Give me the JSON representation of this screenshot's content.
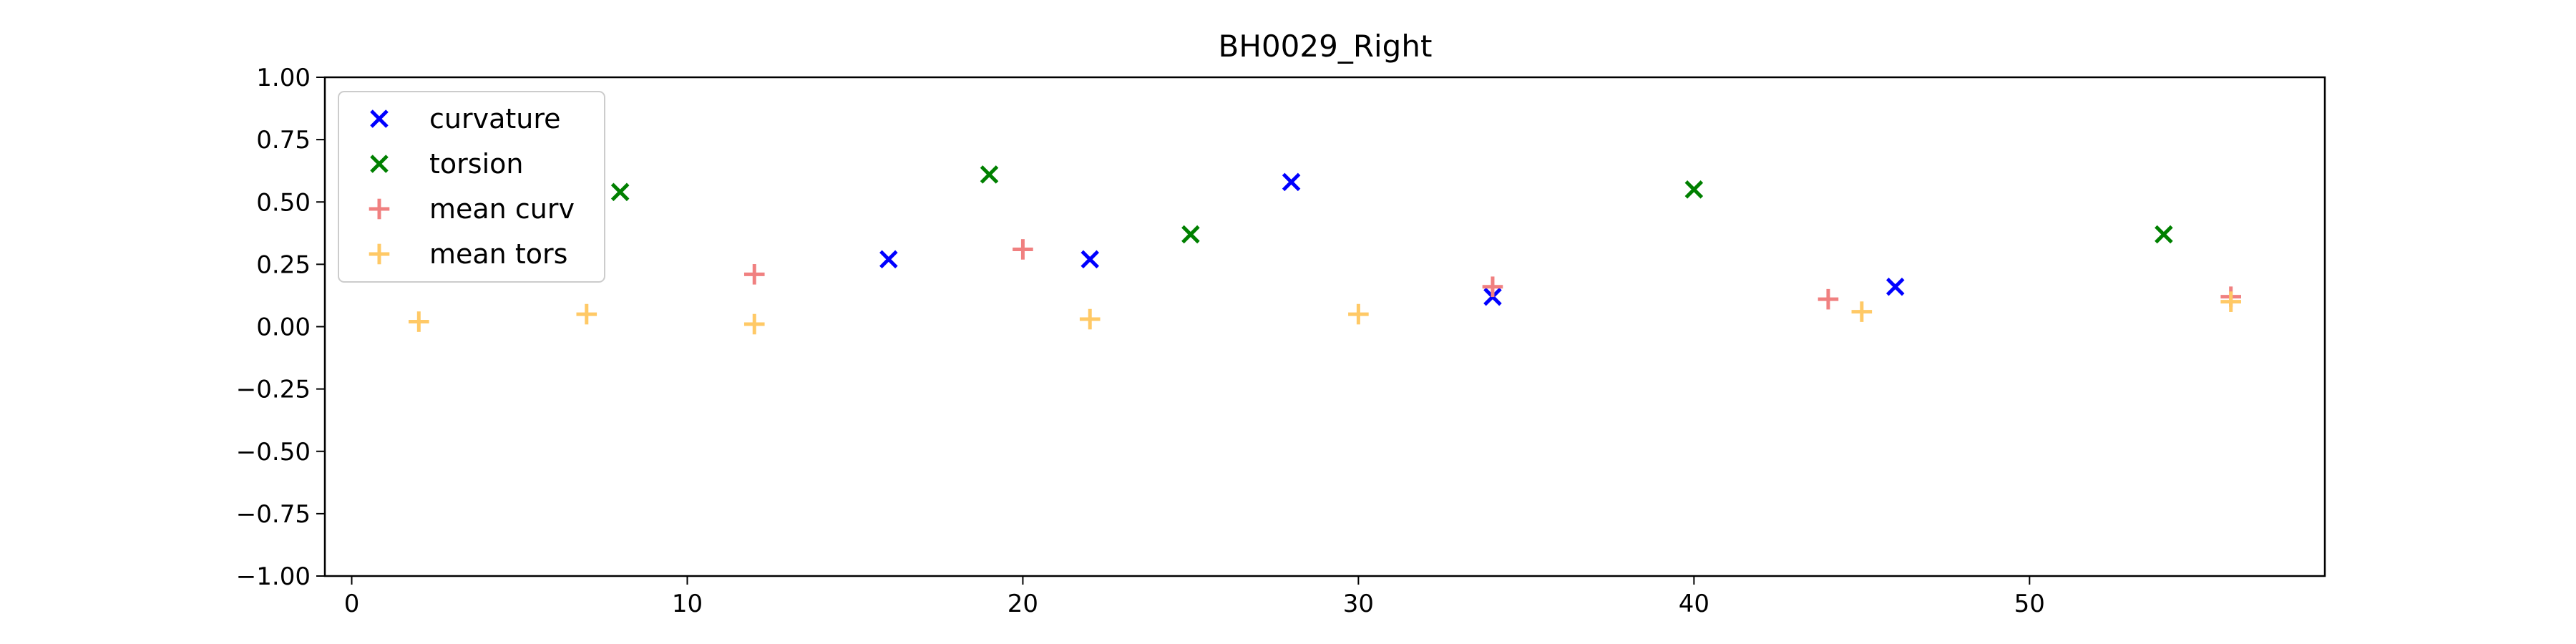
{
  "chart_data": {
    "type": "scatter",
    "title": "BH0029_Right",
    "xlabel": "",
    "ylabel": "",
    "xlim": [
      -0.8,
      58.8
    ],
    "ylim": [
      -1.0,
      1.0
    ],
    "xticks": [
      0,
      10,
      20,
      30,
      40,
      50
    ],
    "xtick_labels": [
      "0",
      "10",
      "20",
      "30",
      "40",
      "50"
    ],
    "yticks": [
      1.0,
      0.75,
      0.5,
      0.25,
      0.0,
      -0.25,
      -0.5,
      -0.75,
      -1.0
    ],
    "ytick_labels": [
      "1.00",
      "0.75",
      "0.50",
      "0.25",
      "0.00",
      "−0.25",
      "−0.50",
      "−0.75",
      "−1.00"
    ],
    "grid": false,
    "legend_position": "top-left",
    "series": [
      {
        "name": "curvature",
        "marker": "x",
        "color": "#0000ff",
        "x": [
          16,
          22,
          28,
          34,
          46
        ],
        "y": [
          0.27,
          0.27,
          0.58,
          0.12,
          0.16
        ]
      },
      {
        "name": "torsion",
        "marker": "x",
        "color": "#008000",
        "x": [
          8,
          19,
          25,
          40,
          54
        ],
        "y": [
          0.54,
          0.61,
          0.37,
          0.55,
          0.37
        ]
      },
      {
        "name": "mean curv",
        "marker": "+",
        "color": "#f08080",
        "x": [
          12,
          20,
          34,
          44,
          56
        ],
        "y": [
          0.21,
          0.31,
          0.16,
          0.11,
          0.12
        ]
      },
      {
        "name": "mean tors",
        "marker": "+",
        "color": "#ffc966",
        "x": [
          2,
          7,
          12,
          22,
          30,
          45,
          56
        ],
        "y": [
          0.02,
          0.05,
          0.01,
          0.03,
          0.05,
          0.06,
          0.1
        ]
      }
    ]
  }
}
